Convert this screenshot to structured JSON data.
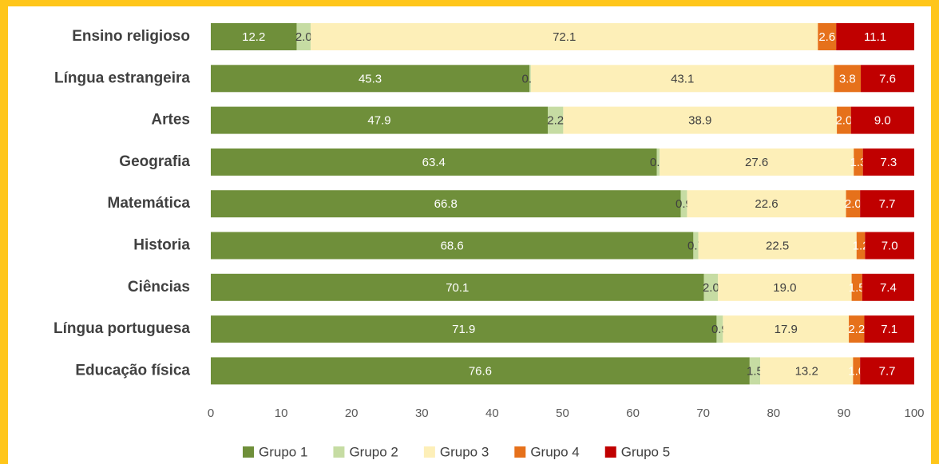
{
  "chart_data": {
    "type": "stacked_barh",
    "categories": [
      "Ensino religioso",
      "Língua estrangeira",
      "Artes",
      "Geografia",
      "Matemática",
      "Historia",
      "Ciências",
      "Língua portuguesa",
      "Educação física"
    ],
    "series": [
      {
        "name": "Grupo 1",
        "color": "#6f8f3a",
        "values": [
          12.2,
          45.3,
          47.9,
          63.4,
          66.8,
          68.6,
          70.1,
          71.9,
          76.6
        ],
        "value_labels": [
          "12.2",
          "45.3",
          "47.9",
          "63.4",
          "66.8",
          "68.6",
          "70.1",
          "71.9",
          "76.6"
        ]
      },
      {
        "name": "Grupo 2",
        "color": "#c6dca3",
        "values": [
          2.0,
          0.2,
          2.2,
          0.4,
          0.9,
          0.7,
          2.0,
          0.9,
          1.5
        ],
        "value_labels": [
          "2.0",
          "0.2",
          "2.2",
          "0.4",
          "0.9",
          "0.7",
          "2.0",
          "0.9",
          "1.5"
        ]
      },
      {
        "name": "Grupo 3",
        "color": "#fdefb8",
        "values": [
          72.1,
          43.1,
          38.9,
          27.6,
          22.6,
          22.5,
          19.0,
          17.9,
          13.2
        ],
        "value_labels": [
          "72.1",
          "43.1",
          "38.9",
          "27.6",
          "22.6",
          "22.5",
          "19.0",
          "17.9",
          "13.2"
        ]
      },
      {
        "name": "Grupo 4",
        "color": "#e6711b",
        "values": [
          2.6,
          3.8,
          2.0,
          1.3,
          2.0,
          1.2,
          1.5,
          2.2,
          1.0
        ],
        "value_labels": [
          "2.6",
          "3.8",
          "2.0",
          "1.3",
          "2.0",
          "1.2",
          "1.5",
          "2.2",
          "1.0"
        ]
      },
      {
        "name": "Grupo 5",
        "color": "#c00000",
        "values": [
          11.1,
          7.6,
          9.0,
          7.3,
          7.7,
          7.0,
          7.4,
          7.1,
          7.7
        ],
        "value_labels": [
          "11.1",
          "7.6",
          "9.0",
          "7.3",
          "7.7",
          "7.0",
          "7.4",
          "7.1",
          "7.7"
        ]
      }
    ],
    "xlim": [
      0,
      100
    ],
    "xticks": [
      0,
      10,
      20,
      30,
      40,
      50,
      60,
      70,
      80,
      90,
      100
    ],
    "grid": false,
    "legend": "bottom"
  }
}
